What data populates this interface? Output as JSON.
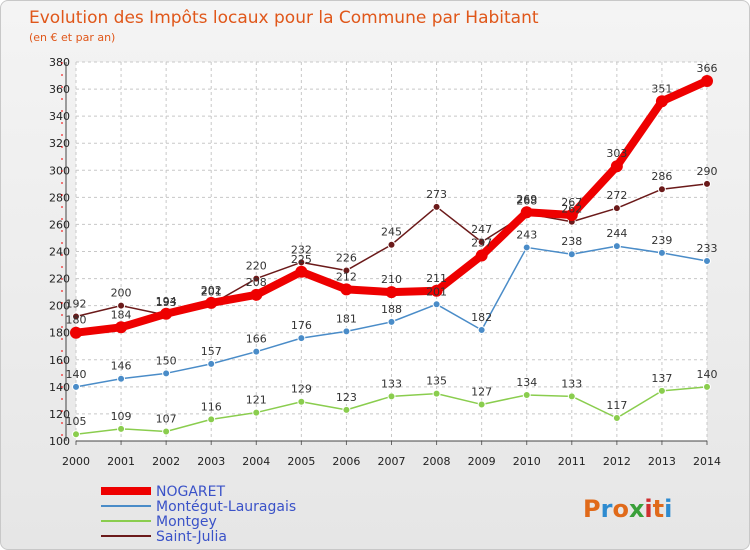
{
  "chart_data": {
    "type": "line",
    "title": "Evolution des Impôts locaux pour la Commune par Habitant",
    "subtitle": "(en € et par an)",
    "xlabel": "",
    "ylabel": "",
    "x": [
      "2000",
      "2001",
      "2002",
      "2003",
      "2004",
      "2005",
      "2006",
      "2007",
      "2008",
      "2009",
      "2010",
      "2011",
      "2012",
      "2013",
      "2014"
    ],
    "ylim": [
      100,
      380
    ],
    "yticks": [
      100,
      120,
      140,
      160,
      180,
      200,
      220,
      240,
      260,
      280,
      300,
      320,
      340,
      360,
      380
    ],
    "grid": true,
    "legend_position": "bottom-left",
    "series": [
      {
        "name": "NOGARET",
        "color": "#ee0000",
        "values": [
          180,
          184,
          194,
          202,
          208,
          225,
          212,
          210,
          211,
          237,
          269,
          267,
          303,
          351,
          366
        ]
      },
      {
        "name": "Montégut-Lauragais",
        "color": "#4a8cc8",
        "values": [
          140,
          146,
          150,
          157,
          166,
          176,
          181,
          188,
          201,
          182,
          243,
          238,
          244,
          239,
          233
        ]
      },
      {
        "name": "Montgey",
        "color": "#8acd4e",
        "values": [
          105,
          109,
          107,
          116,
          121,
          129,
          123,
          133,
          135,
          127,
          134,
          133,
          117,
          137,
          140
        ]
      },
      {
        "name": "Saint-Julia",
        "color": "#6b1a1a",
        "values": [
          192,
          200,
          193,
          201,
          220,
          232,
          226,
          245,
          273,
          247,
          268,
          262,
          272,
          286,
          290
        ]
      }
    ]
  },
  "logo_text": "Proxiti",
  "logo_colors": [
    "#e06a1a",
    "#2e8bd0",
    "#e06a1a",
    "#3aa03a",
    "#d03030",
    "#e06a1a",
    "#2e8bd0"
  ]
}
